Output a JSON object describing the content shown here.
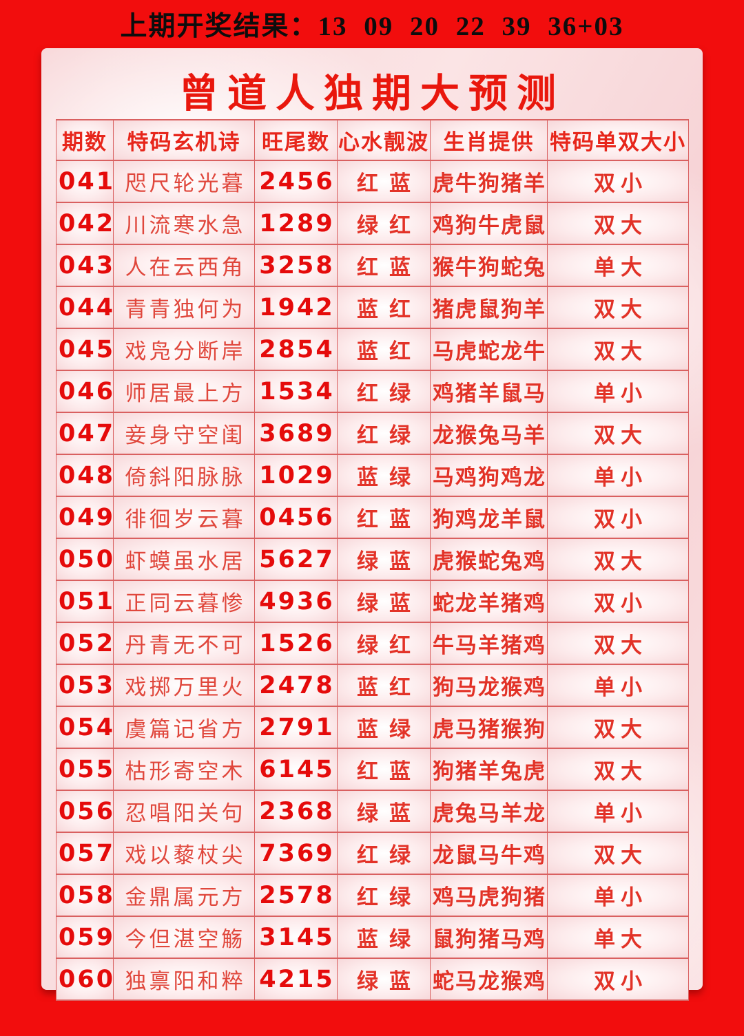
{
  "banner": {
    "text": "上期开奖结果：13 09 20 22 39 36+03"
  },
  "title": "曾道人独期大预测",
  "table": {
    "headers": [
      "期数",
      "特码玄机诗",
      "旺尾数",
      "心水靓波",
      "生肖提供",
      "特码单双大小"
    ],
    "rows": [
      [
        "041",
        "咫尺轮光暮",
        "2456",
        "红蓝",
        "虎牛狗猪羊",
        "双小"
      ],
      [
        "042",
        "川流寒水急",
        "1289",
        "绿红",
        "鸡狗牛虎鼠",
        "双大"
      ],
      [
        "043",
        "人在云西角",
        "3258",
        "红蓝",
        "猴牛狗蛇兔",
        "单大"
      ],
      [
        "044",
        "青青独何为",
        "1942",
        "蓝红",
        "猪虎鼠狗羊",
        "双大"
      ],
      [
        "045",
        "戏凫分断岸",
        "2854",
        "蓝红",
        "马虎蛇龙牛",
        "双大"
      ],
      [
        "046",
        "师居最上方",
        "1534",
        "红绿",
        "鸡猪羊鼠马",
        "单小"
      ],
      [
        "047",
        "妾身守空闺",
        "3689",
        "红绿",
        "龙猴兔马羊",
        "双大"
      ],
      [
        "048",
        "倚斜阳脉脉",
        "1029",
        "蓝绿",
        "马鸡狗鸡龙",
        "单小"
      ],
      [
        "049",
        "徘徊岁云暮",
        "0456",
        "红蓝",
        "狗鸡龙羊鼠",
        "双小"
      ],
      [
        "050",
        "虾蟆虽水居",
        "5627",
        "绿蓝",
        "虎猴蛇兔鸡",
        "双大"
      ],
      [
        "051",
        "正同云暮惨",
        "4936",
        "绿蓝",
        "蛇龙羊猪鸡",
        "双小"
      ],
      [
        "052",
        "丹青无不可",
        "1526",
        "绿红",
        "牛马羊猪鸡",
        "双大"
      ],
      [
        "053",
        "戏掷万里火",
        "2478",
        "蓝红",
        "狗马龙猴鸡",
        "单小"
      ],
      [
        "054",
        "虞篇记省方",
        "2791",
        "蓝绿",
        "虎马猪猴狗",
        "双大"
      ],
      [
        "055",
        "枯形寄空木",
        "6145",
        "红蓝",
        "狗猪羊兔虎",
        "双大"
      ],
      [
        "056",
        "忍唱阳关句",
        "2368",
        "绿蓝",
        "虎兔马羊龙",
        "单小"
      ],
      [
        "057",
        "戏以藜杖尖",
        "7369",
        "红绿",
        "龙鼠马牛鸡",
        "双大"
      ],
      [
        "058",
        "金鼎属元方",
        "2578",
        "红绿",
        "鸡马虎狗猪",
        "单小"
      ],
      [
        "059",
        "今但湛空觞",
        "3145",
        "蓝绿",
        "鼠狗猪马鸡",
        "单大"
      ],
      [
        "060",
        "独禀阳和粹",
        "4215",
        "绿蓝",
        "蛇马龙猴鸡",
        "双小"
      ]
    ]
  },
  "colors": {
    "page_background": "#f20d0d",
    "title_red": "#e9170d",
    "header_red": "#e7261b",
    "text_red": "#e23227",
    "number_red": "#e50b0b",
    "banner_text": "#0d0d0d",
    "table_border": "#d96060",
    "panel_pink": "#f8d6d8"
  }
}
